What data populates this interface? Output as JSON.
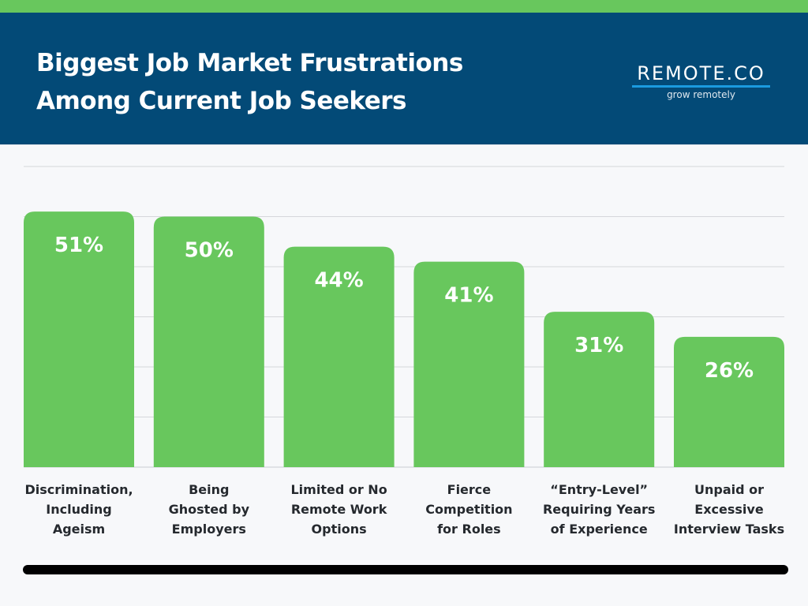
{
  "header": {
    "title_lines": [
      "Biggest Job Market Frustrations",
      "Among Current Job Seekers"
    ],
    "logo_text": "REMOTE.CO",
    "logo_tagline": "grow remotely"
  },
  "colors": {
    "top_stripe": "#68c75d",
    "header_bg": "#034a77",
    "bar": "#68c75d",
    "logo_underline": "#1b9be0",
    "background": "#f7f8fa",
    "gridline": "#d5d7db"
  },
  "chart_data": {
    "type": "bar",
    "title": "Biggest Job Market Frustrations Among Current Job Seekers",
    "xlabel": "",
    "ylabel": "",
    "ylim": [
      0,
      60
    ],
    "y_gridlines": [
      10,
      20,
      30,
      40,
      50,
      60
    ],
    "grid": true,
    "categories": [
      [
        "Discrimination,",
        "Including",
        "Ageism"
      ],
      [
        "Being",
        "Ghosted by",
        "Employers"
      ],
      [
        "Limited or No",
        "Remote Work",
        "Options"
      ],
      [
        "Fierce",
        "Competition",
        "for Roles"
      ],
      [
        "“Entry-Level”",
        "Requiring Years",
        "of Experience"
      ],
      [
        "Unpaid or",
        "Excessive",
        "Interview Tasks"
      ]
    ],
    "values": [
      51,
      50,
      44,
      41,
      31,
      26
    ],
    "value_labels": [
      "51%",
      "50%",
      "44%",
      "41%",
      "31%",
      "26%"
    ]
  }
}
